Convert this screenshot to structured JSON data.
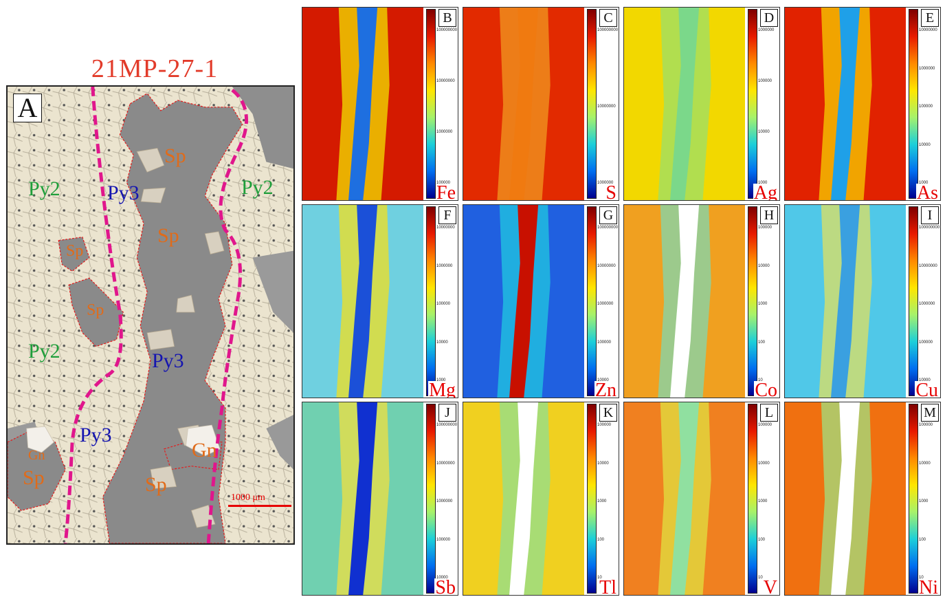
{
  "figure": {
    "title": "21MP-27-1",
    "panel_a_letter": "A",
    "scale_bar_label": "1000 μm",
    "mineral_labels": {
      "py2_a": "Py2",
      "py2_b": "Py2",
      "py2_c": "Py2",
      "py3_a": "Py3",
      "py3_b": "Py3",
      "py3_c": "Py3",
      "sp_a": "Sp",
      "sp_b": "Sp",
      "sp_c": "Sp",
      "sp_d": "Sp",
      "sp_e": "Sp",
      "sp_f": "Sp",
      "gn_a": "Gn",
      "gn_b": "Gn"
    },
    "maps": [
      {
        "letter": "B",
        "element": "Fe",
        "ticks": [
          "100000000",
          "10000000",
          "1000000",
          "100000"
        ]
      },
      {
        "letter": "C",
        "element": "S",
        "ticks": [
          "100000000",
          "10000000",
          "1000000"
        ]
      },
      {
        "letter": "D",
        "element": "Ag",
        "ticks": [
          "1000000",
          "100000",
          "10000",
          "1000"
        ]
      },
      {
        "letter": "E",
        "element": "As",
        "ticks": [
          "10000000",
          "1000000",
          "100000",
          "10000",
          "1000"
        ]
      },
      {
        "letter": "F",
        "element": "Mg",
        "ticks": [
          "10000000",
          "1000000",
          "100000",
          "10000",
          "1000"
        ]
      },
      {
        "letter": "G",
        "element": "Zn",
        "ticks": [
          "100000000",
          "10000000",
          "1000000",
          "100000",
          "10000"
        ]
      },
      {
        "letter": "H",
        "element": "Co",
        "ticks": [
          "100000",
          "10000",
          "1000",
          "100",
          "10"
        ]
      },
      {
        "letter": "I",
        "element": "Cu",
        "ticks": [
          "100000000",
          "10000000",
          "1000000",
          "100000",
          "10000"
        ]
      },
      {
        "letter": "J",
        "element": "Sb",
        "ticks": [
          "100000000",
          "10000000",
          "1000000",
          "100000",
          "10000"
        ]
      },
      {
        "letter": "K",
        "element": "Tl",
        "ticks": [
          "100000",
          "10000",
          "1000",
          "100",
          "10"
        ]
      },
      {
        "letter": "L",
        "element": "V",
        "ticks": [
          "100000",
          "10000",
          "1000",
          "100",
          "10"
        ]
      },
      {
        "letter": "M",
        "element": "Ni",
        "ticks": [
          "100000",
          "10000",
          "1000",
          "100",
          "10"
        ]
      }
    ],
    "colors": {
      "title_red": "#e23b2a",
      "element_red": "#e60000",
      "pyrite_green": "#1f9e3a",
      "py3_blue": "#1515b0",
      "sphalerite_orange": "#e06b1a",
      "vein_magenta": "#e0168c"
    }
  }
}
